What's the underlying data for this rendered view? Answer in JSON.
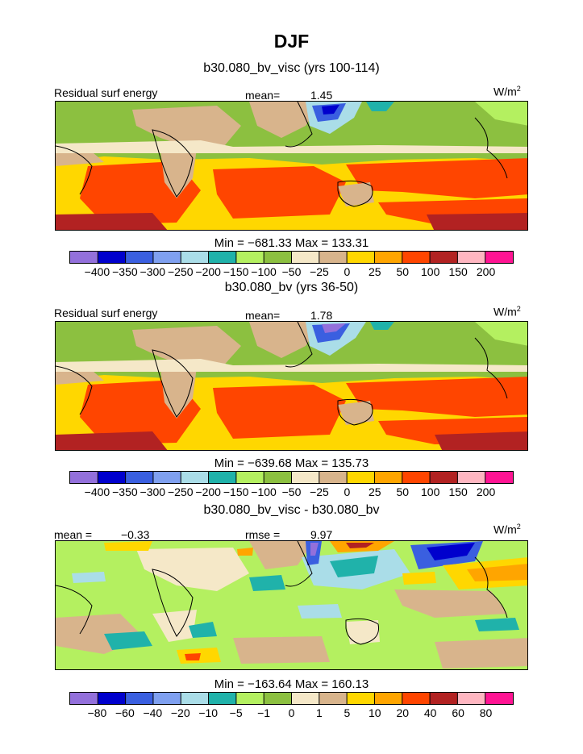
{
  "main_title": "DJF",
  "units": "W/m",
  "units_sup": "2",
  "chart_data": [
    {
      "type": "heatmap",
      "title": "b30.080_bv_visc (yrs 100-114)",
      "field_label": "Residual surf energy",
      "mean_label": "mean=",
      "mean_value": "1.45",
      "min_max_text": "Min = −681.33 Max = 133.31",
      "min": -681.33,
      "max": 133.31,
      "levels": [
        -400,
        -350,
        -300,
        -250,
        -200,
        -150,
        -100,
        -50,
        -25,
        0,
        25,
        50,
        100,
        150,
        200
      ],
      "level_labels": [
        "−400",
        "−350",
        "−300",
        "−250",
        "−200",
        "−150",
        "−100",
        "−50",
        "−25",
        "0",
        "25",
        "50",
        "100",
        "150",
        "200"
      ],
      "colors": [
        "#9370db",
        "#0000cd",
        "#3a5fe0",
        "#7fa0f0",
        "#aadde8",
        "#20b2aa",
        "#b4f060",
        "#8cc040",
        "#f5e8c8",
        "#d8b48c",
        "#ffd700",
        "#ffa500",
        "#ff4500",
        "#b22222",
        "#ffb6c1",
        "#ff1493"
      ]
    },
    {
      "type": "heatmap",
      "title": "b30.080_bv (yrs 36-50)",
      "field_label": "Residual surf energy",
      "mean_label": "mean=",
      "mean_value": "1.78",
      "min_max_text": "Min = −639.68 Max = 135.73",
      "min": -639.68,
      "max": 135.73,
      "levels": [
        -400,
        -350,
        -300,
        -250,
        -200,
        -150,
        -100,
        -50,
        -25,
        0,
        25,
        50,
        100,
        150,
        200
      ],
      "level_labels": [
        "−400",
        "−350",
        "−300",
        "−250",
        "−200",
        "−150",
        "−100",
        "−50",
        "−25",
        "0",
        "25",
        "50",
        "100",
        "150",
        "200"
      ],
      "colors": [
        "#9370db",
        "#0000cd",
        "#3a5fe0",
        "#7fa0f0",
        "#aadde8",
        "#20b2aa",
        "#b4f060",
        "#8cc040",
        "#f5e8c8",
        "#d8b48c",
        "#ffd700",
        "#ffa500",
        "#ff4500",
        "#b22222",
        "#ffb6c1",
        "#ff1493"
      ]
    },
    {
      "type": "heatmap",
      "title": "b30.080_bv_visc - b30.080_bv",
      "mean_label": "mean =",
      "mean_value": "−0.33",
      "rmse_label": "rmse =",
      "rmse_value": "9.97",
      "min_max_text": "Min = −163.64 Max = 160.13",
      "min": -163.64,
      "max": 160.13,
      "levels": [
        -80,
        -60,
        -40,
        -20,
        -10,
        -5,
        -1,
        0,
        1,
        5,
        10,
        20,
        40,
        60,
        80
      ],
      "level_labels": [
        "−80",
        "−60",
        "−40",
        "−20",
        "−10",
        "−5",
        "−1",
        "0",
        "1",
        "5",
        "10",
        "20",
        "40",
        "60",
        "80"
      ],
      "colors": [
        "#9370db",
        "#0000cd",
        "#3a5fe0",
        "#7fa0f0",
        "#aadde8",
        "#20b2aa",
        "#b4f060",
        "#8cc040",
        "#f5e8c8",
        "#d8b48c",
        "#ffd700",
        "#ffa500",
        "#ff4500",
        "#b22222",
        "#ffb6c1",
        "#ff1493"
      ]
    }
  ]
}
